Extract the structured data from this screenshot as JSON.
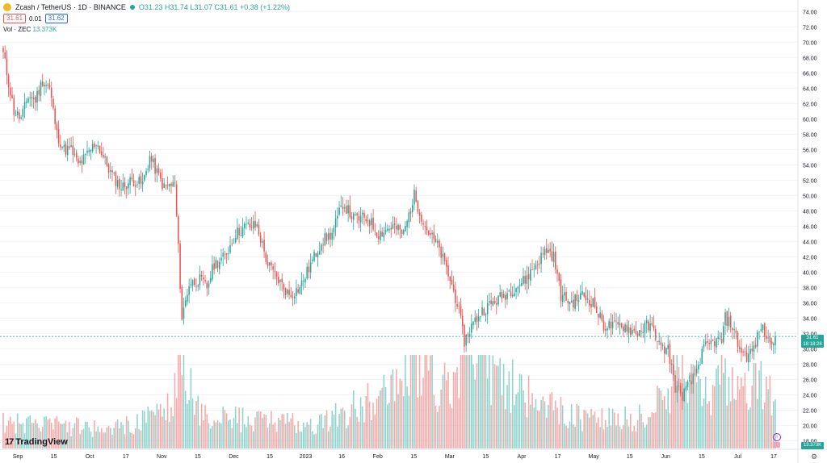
{
  "header": {
    "symbol": "Zcash / TetherUS · 1D · BINANCE",
    "ohlc": "O31.23 H31.74 L31.07 C31.61 +0.38 (+1.22%)",
    "sell": "31.61",
    "spread": "0.01",
    "buy": "31.62"
  },
  "volume_label": {
    "name": "Vol · ZEC",
    "value": "13.373K"
  },
  "watermark": "TradingView",
  "last_price": {
    "price": "31.61",
    "countdown": "18:18:28"
  },
  "last_volume": "13.373K",
  "colors": {
    "up": "#26a69a",
    "down": "#ef5350",
    "up_vol": "#8fd3cc",
    "down_vol": "#f5a9a8",
    "grid": "#f0f3fa",
    "price_line": "#26a69a"
  },
  "chart_data": {
    "type": "candlestick",
    "interval": "1D",
    "y_axis_ticks": [
      "74.00",
      "72.00",
      "70.00",
      "68.00",
      "66.00",
      "64.00",
      "62.00",
      "60.00",
      "58.00",
      "56.00",
      "54.00",
      "52.00",
      "50.00",
      "48.00",
      "46.00",
      "44.00",
      "42.00",
      "40.00",
      "38.00",
      "36.00",
      "34.00",
      "32.00",
      "30.00",
      "28.00",
      "26.00",
      "24.00",
      "22.00",
      "20.00",
      "18.00"
    ],
    "ylim": [
      17.0,
      75.5
    ],
    "x_axis_ticks": [
      "Sep",
      "15",
      "Oct",
      "17",
      "Nov",
      "15",
      "Dec",
      "15",
      "2023",
      "16",
      "Feb",
      "15",
      "Mar",
      "15",
      "Apr",
      "17",
      "May",
      "15",
      "Jun",
      "15",
      "Jul",
      "17"
    ],
    "price_anchors": [
      [
        0,
        68.5
      ],
      [
        6,
        61
      ],
      [
        10,
        60
      ],
      [
        14,
        63
      ],
      [
        18,
        62.5
      ],
      [
        22,
        65
      ],
      [
        26,
        64
      ],
      [
        30,
        58
      ],
      [
        34,
        56
      ],
      [
        38,
        56
      ],
      [
        42,
        54
      ],
      [
        46,
        55
      ],
      [
        52,
        57
      ],
      [
        56,
        55
      ],
      [
        60,
        53
      ],
      [
        66,
        51
      ],
      [
        72,
        52
      ],
      [
        78,
        51.5
      ],
      [
        82,
        55
      ],
      [
        86,
        53
      ],
      [
        90,
        51
      ],
      [
        96,
        51.5
      ],
      [
        98,
        43
      ],
      [
        100,
        34
      ],
      [
        104,
        38.5
      ],
      [
        110,
        39
      ],
      [
        114,
        38
      ],
      [
        118,
        41
      ],
      [
        124,
        42
      ],
      [
        130,
        45
      ],
      [
        136,
        46
      ],
      [
        142,
        46
      ],
      [
        148,
        41
      ],
      [
        154,
        39
      ],
      [
        160,
        37
      ],
      [
        166,
        38
      ],
      [
        172,
        41
      ],
      [
        178,
        44
      ],
      [
        184,
        45
      ],
      [
        190,
        49
      ],
      [
        196,
        47
      ],
      [
        204,
        47
      ],
      [
        210,
        45
      ],
      [
        218,
        46
      ],
      [
        224,
        45
      ],
      [
        230,
        50
      ],
      [
        236,
        46
      ],
      [
        244,
        43
      ],
      [
        250,
        39
      ],
      [
        254,
        36
      ],
      [
        258,
        31
      ],
      [
        262,
        33
      ],
      [
        268,
        35
      ],
      [
        274,
        36
      ],
      [
        280,
        37
      ],
      [
        286,
        38
      ],
      [
        292,
        39
      ],
      [
        298,
        41
      ],
      [
        304,
        43
      ],
      [
        308,
        42
      ],
      [
        312,
        37
      ],
      [
        318,
        36
      ],
      [
        324,
        37
      ],
      [
        330,
        36
      ],
      [
        336,
        33
      ],
      [
        342,
        33
      ],
      [
        348,
        33
      ],
      [
        354,
        32
      ],
      [
        360,
        33
      ],
      [
        364,
        32.5
      ],
      [
        368,
        30
      ],
      [
        372,
        30
      ],
      [
        376,
        25
      ],
      [
        380,
        24
      ],
      [
        386,
        26
      ],
      [
        392,
        30
      ],
      [
        398,
        31
      ],
      [
        402,
        31
      ],
      [
        404,
        34
      ],
      [
        408,
        33
      ],
      [
        412,
        30
      ],
      [
        416,
        29
      ],
      [
        420,
        30
      ],
      [
        424,
        33
      ],
      [
        428,
        31
      ],
      [
        432,
        31.61
      ]
    ],
    "volume_anchors_k": [
      [
        0,
        8
      ],
      [
        40,
        7
      ],
      [
        60,
        6
      ],
      [
        80,
        9
      ],
      [
        95,
        14
      ],
      [
        100,
        30
      ],
      [
        104,
        20
      ],
      [
        110,
        10
      ],
      [
        140,
        9
      ],
      [
        160,
        8
      ],
      [
        175,
        7
      ],
      [
        185,
        10
      ],
      [
        200,
        14
      ],
      [
        220,
        18
      ],
      [
        230,
        28
      ],
      [
        245,
        20
      ],
      [
        258,
        26
      ],
      [
        262,
        30
      ],
      [
        275,
        24
      ],
      [
        290,
        18
      ],
      [
        300,
        14
      ],
      [
        320,
        10
      ],
      [
        340,
        9
      ],
      [
        360,
        10
      ],
      [
        372,
        18
      ],
      [
        378,
        30
      ],
      [
        385,
        20
      ],
      [
        395,
        15
      ],
      [
        405,
        24
      ],
      [
        415,
        18
      ],
      [
        425,
        20
      ],
      [
        432,
        13.373
      ]
    ],
    "volume_max_k": 30
  }
}
